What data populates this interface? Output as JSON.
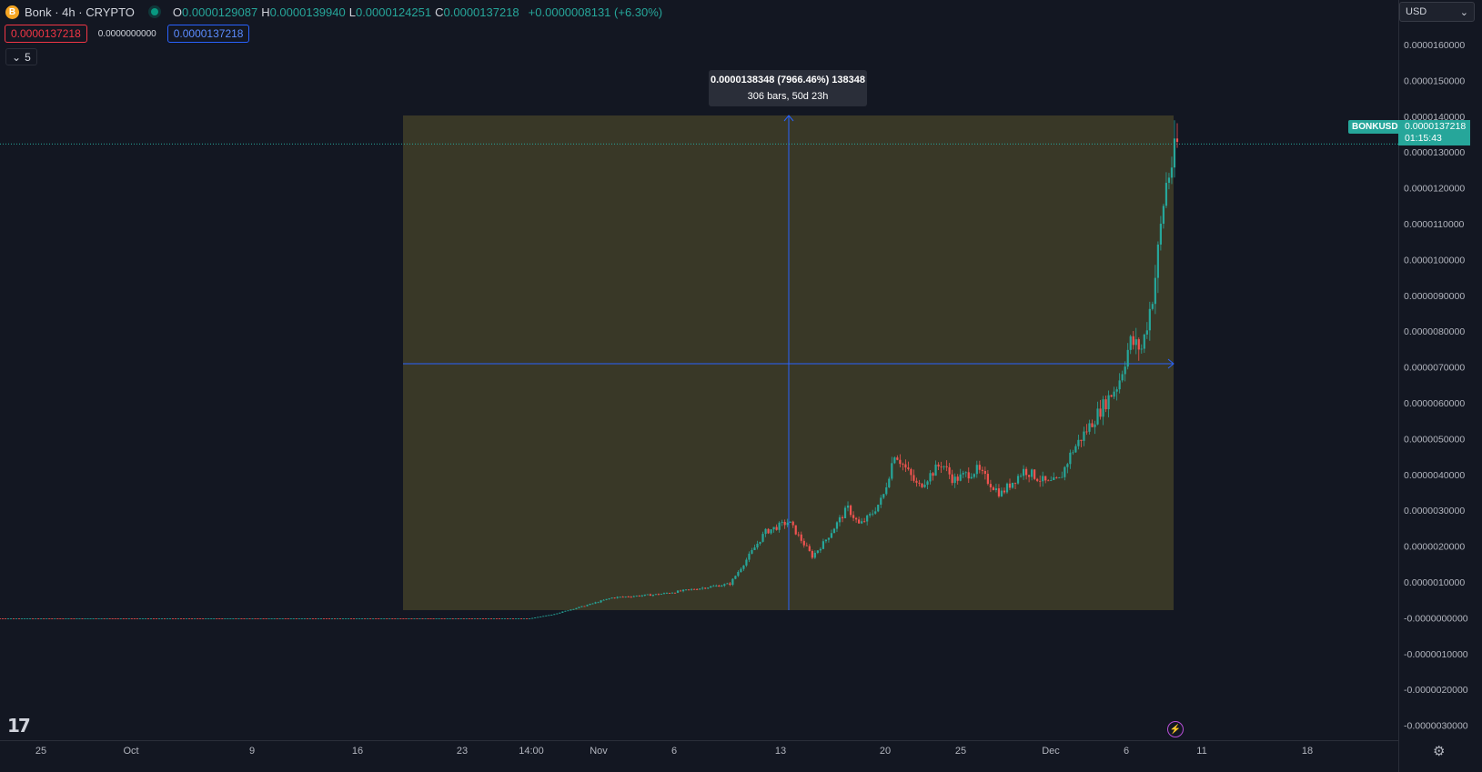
{
  "header": {
    "symbol_title": "Bonk · 4h · CRYPTO",
    "coin_glyph": "B",
    "ohlc": [
      {
        "key": "O",
        "value": "0.0000129087"
      },
      {
        "key": "H",
        "value": "0.0000139940"
      },
      {
        "key": "L",
        "value": "0.0000124251"
      },
      {
        "key": "C",
        "value": "0.0000137218"
      }
    ],
    "change": "+0.0000008131 (+6.30%)",
    "sell_price": "0.0000137218",
    "spread": "0.0000000000",
    "buy_price": "0.0000137218",
    "collapse_label": "5"
  },
  "currency_select": {
    "value": "USD"
  },
  "measure_tooltip": {
    "line1": "0.0000138348 (7966.46%) 138348",
    "line2": "306 bars, 50d 23h"
  },
  "price_tag": {
    "symbol": "BONKUSD",
    "price": "0.0000137218",
    "countdown": "01:15:43"
  },
  "colors": {
    "background": "#131722",
    "up": "#26a69a",
    "down": "#ef5350",
    "measure_fill": "#3b3a28",
    "measure_line": "#2962ff",
    "grid_text": "#b2b5be"
  },
  "chart_data": {
    "type": "candlestick",
    "x_ticks": [
      "25",
      "Oct",
      "9",
      "16",
      "23",
      "14:00",
      "Nov",
      "6",
      "13",
      "20",
      "25",
      "Dec",
      "6",
      "11",
      "18"
    ],
    "y_ticks": [
      "0.0000160000",
      "0.0000150000",
      "0.0000140000",
      "0.0000130000",
      "0.0000120000",
      "0.0000110000",
      "0.0000100000",
      "0.0000090000",
      "0.0000080000",
      "0.0000070000",
      "0.0000060000",
      "0.0000050000",
      "0.0000040000",
      "0.0000030000",
      "0.0000020000",
      "0.0000010000",
      "-0.0000000000",
      "-0.0000010000",
      "-0.0000020000",
      "-0.0000030000"
    ],
    "ylim": [
      -3.1e-06,
      1.66e-05
    ],
    "last_price": 1.37218e-05,
    "measure": {
      "from_price": 0.0,
      "to_price": 1.39e-05,
      "bars": 306
    },
    "path_x": [
      0,
      0.35,
      0.4,
      0.45,
      0.47,
      0.5,
      0.52,
      0.56,
      0.58,
      0.6,
      0.62,
      0.63,
      0.65,
      0.67,
      0.69,
      0.7,
      0.72,
      0.73,
      0.74,
      0.75,
      0.76,
      0.78,
      0.8,
      0.81,
      0.83,
      0.85,
      0.87,
      0.89,
      0.9,
      0.91,
      0.93,
      0.95,
      0.96,
      0.97,
      0.98,
      0.99,
      1.0
    ],
    "path_y": [
      0.0,
      0.0,
      0.0,
      0.0,
      1.2e-07,
      4e-07,
      6e-07,
      7e-07,
      8e-07,
      9e-07,
      1e-06,
      1.5e-06,
      2.5e-06,
      2.8e-06,
      1.8e-06,
      2.2e-06,
      3.2e-06,
      2.7e-06,
      3e-06,
      3.5e-06,
      4.8e-06,
      3.8e-06,
      4.5e-06,
      4e-06,
      4.3e-06,
      3.6e-06,
      4.3e-06,
      3.9e-06,
      4e-06,
      4.8e-06,
      5.8e-06,
      6.8e-06,
      8e-06,
      7.8e-06,
      9.5e-06,
      1.25e-05,
      1.37e-05
    ]
  }
}
